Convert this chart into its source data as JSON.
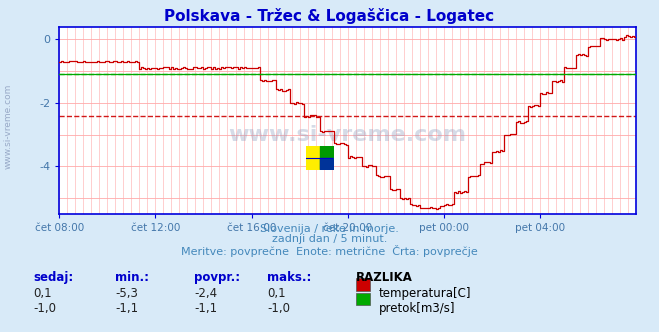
{
  "title": "Polskava - Tržec & Logaščica - Logatec",
  "title_color": "#0000cc",
  "title_fontsize": 11,
  "bg_color": "#d8eaf8",
  "plot_bg_color": "#ffffff",
  "grid_color": "#ffaaaa",
  "axis_color": "#0000dd",
  "tick_label_color": "#4477aa",
  "ylim": [
    -5.5,
    0.4
  ],
  "yticks": [
    0,
    -2,
    -4
  ],
  "xtick_labels": [
    "čet 08:00",
    "čet 12:00",
    "čet 16:00",
    "čet 20:00",
    "pet 00:00",
    "pet 04:00"
  ],
  "subtitle1": "Slovenija / reke in morje.",
  "subtitle2": "zadnji dan / 5 minut.",
  "subtitle3": "Meritve: povprečne  Enote: metrične  Črta: povprečje",
  "subtitle_color": "#4488bb",
  "legend_header": "RAZLIKA",
  "legend_items": [
    "temperatura[C]",
    "pretok[m3/s]"
  ],
  "legend_colors": [
    "#cc0000",
    "#00aa00"
  ],
  "table_headers": [
    "sedaj:",
    "min.:",
    "povpr.:",
    "maks.:"
  ],
  "table_row1": [
    "0,1",
    "-5,3",
    "-2,4",
    "0,1"
  ],
  "table_row2": [
    "-1,0",
    "-1,1",
    "-1,1",
    "-1,0"
  ],
  "table_header_color": "#0000cc",
  "table_val_color": "#222222",
  "temp_avg": -2.4,
  "flow_avg": -1.1,
  "temp_color": "#cc0000",
  "flow_color": "#00aa00",
  "watermark_text": "www.si-vreme.com",
  "watermark_color": "#8899bb",
  "side_watermark": "www.si-vreme.com"
}
